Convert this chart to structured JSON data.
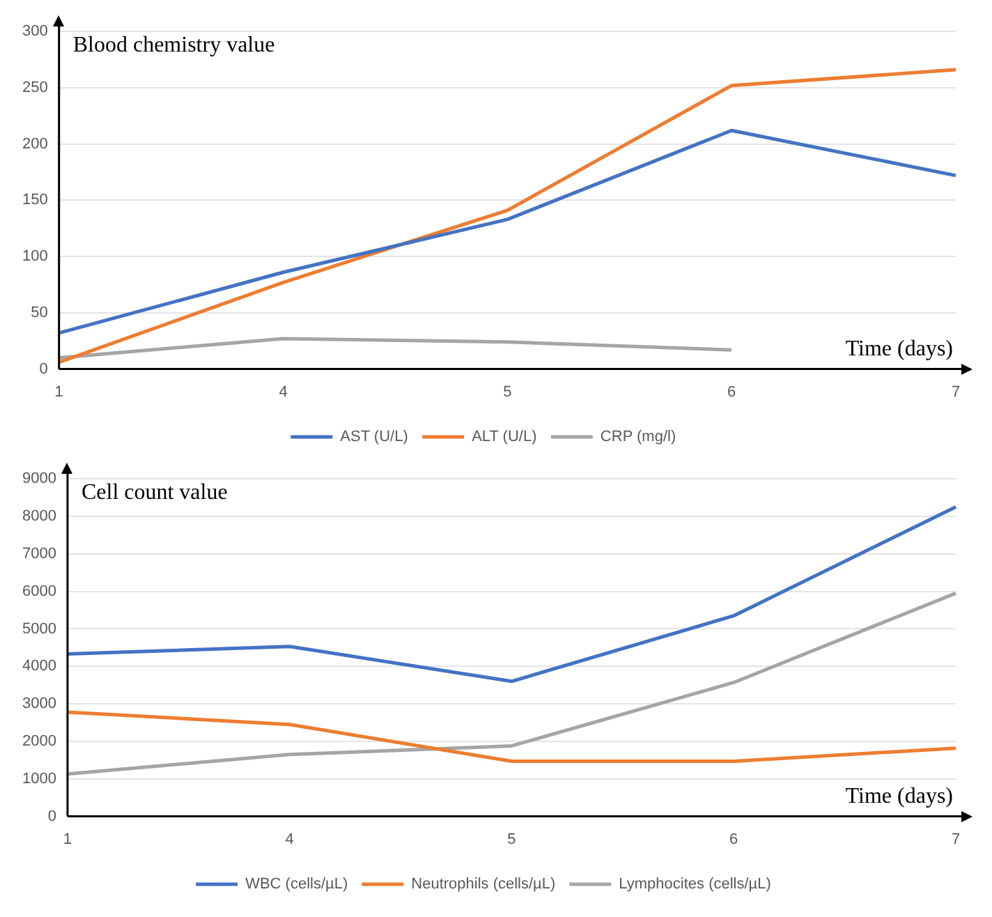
{
  "chart_data": [
    {
      "type": "line",
      "ylabel": "Blood chemistry value",
      "xlabel": "Time (days)",
      "categories": [
        "1",
        "4",
        "5",
        "6",
        "7"
      ],
      "ylim": [
        0,
        300
      ],
      "yticks": [
        0,
        50,
        100,
        150,
        200,
        250,
        300
      ],
      "grid": "y",
      "legend": "bottom",
      "marker": "none",
      "line_style": "solid",
      "series": [
        {
          "name": "AST (U/L)",
          "color": "#4472c4",
          "values": [
            32,
            86,
            133,
            212,
            172
          ]
        },
        {
          "name": "ALT (U/L)",
          "color": "#ed7d31",
          "values": [
            6,
            77,
            141,
            252,
            266
          ]
        },
        {
          "name": "CRP (mg/l)",
          "color": "#a5a5a5",
          "values": [
            10,
            27,
            24,
            17,
            null
          ]
        }
      ]
    },
    {
      "type": "line",
      "ylabel": "Cell count value",
      "xlabel": "Time (days)",
      "categories": [
        "1",
        "4",
        "5",
        "6",
        "7"
      ],
      "ylim": [
        0,
        9000
      ],
      "yticks": [
        0,
        1000,
        2000,
        3000,
        4000,
        5000,
        6000,
        7000,
        8000,
        9000
      ],
      "grid": "y",
      "legend": "bottom",
      "marker": "none",
      "line_style": "solid",
      "series": [
        {
          "name": "WBC (cells/µL)",
          "color": "#4472c4",
          "values": [
            4330,
            4530,
            3600,
            5350,
            8250
          ]
        },
        {
          "name": "Neutrophils (cells/µL)",
          "color": "#ed7d31",
          "values": [
            2780,
            2450,
            1470,
            1470,
            1820
          ]
        },
        {
          "name": "Lymphocites (cells/µL)",
          "color": "#a5a5a5",
          "values": [
            1130,
            1650,
            1880,
            3570,
            5950
          ]
        }
      ]
    }
  ]
}
